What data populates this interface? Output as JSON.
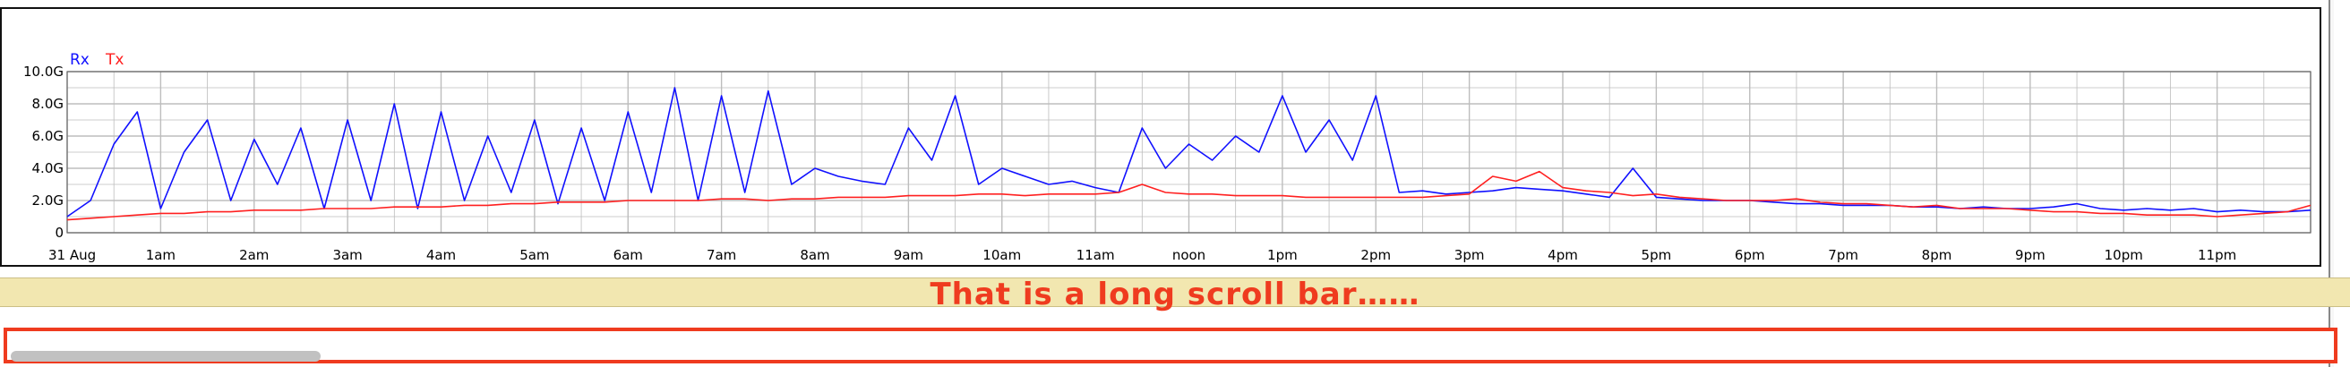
{
  "banner": {
    "text": "That is a long scroll bar……"
  },
  "scrollbar": {
    "position": 0.0,
    "thumb_fraction": 0.13
  },
  "colors": {
    "rx": "#1010ff",
    "tx": "#ff2020",
    "banner_text": "#ef3b1f",
    "banner_bg": "#f2e7b0",
    "grid": "#bdbdbd"
  },
  "chart_data": {
    "type": "line",
    "title": "",
    "xlabel": "",
    "ylabel": "",
    "x_tick_labels": [
      "31 Aug",
      "1am",
      "2am",
      "3am",
      "4am",
      "5am",
      "6am",
      "7am",
      "8am",
      "9am",
      "10am",
      "11am",
      "noon",
      "1pm",
      "2pm",
      "3pm",
      "4pm",
      "5pm",
      "6pm",
      "7pm",
      "8pm",
      "9pm",
      "10pm",
      "11pm"
    ],
    "y_tick_labels": [
      "0",
      "2.0G",
      "4.0G",
      "6.0G",
      "8.0G",
      "10.0G"
    ],
    "ylim": [
      0,
      10
    ],
    "xlim": [
      0,
      24
    ],
    "grid": true,
    "legend": "top-left",
    "series": [
      {
        "name": "Rx",
        "color": "#1010ff",
        "x": [
          0,
          0.25,
          0.5,
          0.75,
          1,
          1.25,
          1.5,
          1.75,
          2,
          2.25,
          2.5,
          2.75,
          3,
          3.25,
          3.5,
          3.75,
          4,
          4.25,
          4.5,
          4.75,
          5,
          5.25,
          5.5,
          5.75,
          6,
          6.25,
          6.5,
          6.75,
          7,
          7.25,
          7.5,
          7.75,
          8,
          8.25,
          8.5,
          8.75,
          9,
          9.25,
          9.5,
          9.75,
          10,
          10.25,
          10.5,
          10.75,
          11,
          11.25,
          11.5,
          11.75,
          12,
          12.25,
          12.5,
          12.75,
          13,
          13.25,
          13.5,
          13.75,
          14,
          14.25,
          14.5,
          14.75,
          15,
          15.25,
          15.5,
          15.75,
          16,
          16.25,
          16.5,
          16.75,
          17,
          17.25,
          17.5,
          17.75,
          18,
          18.25,
          18.5,
          18.75,
          19,
          19.25,
          19.5,
          19.75,
          20,
          20.25,
          20.5,
          20.75,
          21,
          21.25,
          21.5,
          21.75,
          22,
          22.25,
          22.5,
          22.75,
          23,
          23.25,
          23.5,
          23.75,
          24
        ],
        "y": [
          1.0,
          2.0,
          5.5,
          7.5,
          1.5,
          5.0,
          7.0,
          2.0,
          5.8,
          3.0,
          6.5,
          1.5,
          7.0,
          2.0,
          8.0,
          1.5,
          7.5,
          2.0,
          6.0,
          2.5,
          7.0,
          1.8,
          6.5,
          2.0,
          7.5,
          2.5,
          9.0,
          2.0,
          8.5,
          2.5,
          8.8,
          3.0,
          4.0,
          3.5,
          3.2,
          3.0,
          6.5,
          4.5,
          8.5,
          3.0,
          4.0,
          3.5,
          3.0,
          3.2,
          2.8,
          2.5,
          6.5,
          4.0,
          5.5,
          4.5,
          6.0,
          5.0,
          8.5,
          5.0,
          7.0,
          4.5,
          8.5,
          2.5,
          2.6,
          2.4,
          2.5,
          2.6,
          2.8,
          2.7,
          2.6,
          2.4,
          2.2,
          4.0,
          2.2,
          2.1,
          2.0,
          2.0,
          2.0,
          1.9,
          1.8,
          1.8,
          1.7,
          1.7,
          1.7,
          1.6,
          1.6,
          1.5,
          1.6,
          1.5,
          1.5,
          1.6,
          1.8,
          1.5,
          1.4,
          1.5,
          1.4,
          1.5,
          1.3,
          1.4,
          1.3,
          1.3,
          1.4
        ]
      },
      {
        "name": "Tx",
        "color": "#ff2020",
        "x": [
          0,
          0.25,
          0.5,
          0.75,
          1,
          1.25,
          1.5,
          1.75,
          2,
          2.25,
          2.5,
          2.75,
          3,
          3.25,
          3.5,
          3.75,
          4,
          4.25,
          4.5,
          4.75,
          5,
          5.25,
          5.5,
          5.75,
          6,
          6.25,
          6.5,
          6.75,
          7,
          7.25,
          7.5,
          7.75,
          8,
          8.25,
          8.5,
          8.75,
          9,
          9.25,
          9.5,
          9.75,
          10,
          10.25,
          10.5,
          10.75,
          11,
          11.25,
          11.5,
          11.75,
          12,
          12.25,
          12.5,
          12.75,
          13,
          13.25,
          13.5,
          13.75,
          14,
          14.25,
          14.5,
          14.75,
          15,
          15.25,
          15.5,
          15.75,
          16,
          16.25,
          16.5,
          16.75,
          17,
          17.25,
          17.5,
          17.75,
          18,
          18.25,
          18.5,
          18.75,
          19,
          19.25,
          19.5,
          19.75,
          20,
          20.25,
          20.5,
          20.75,
          21,
          21.25,
          21.5,
          21.75,
          22,
          22.25,
          22.5,
          22.75,
          23,
          23.25,
          23.5,
          23.75,
          24
        ],
        "y": [
          0.8,
          0.9,
          1.0,
          1.1,
          1.2,
          1.2,
          1.3,
          1.3,
          1.4,
          1.4,
          1.4,
          1.5,
          1.5,
          1.5,
          1.6,
          1.6,
          1.6,
          1.7,
          1.7,
          1.8,
          1.8,
          1.9,
          1.9,
          1.9,
          2.0,
          2.0,
          2.0,
          2.0,
          2.1,
          2.1,
          2.0,
          2.1,
          2.1,
          2.2,
          2.2,
          2.2,
          2.3,
          2.3,
          2.3,
          2.4,
          2.4,
          2.3,
          2.4,
          2.4,
          2.4,
          2.5,
          3.0,
          2.5,
          2.4,
          2.4,
          2.3,
          2.3,
          2.3,
          2.2,
          2.2,
          2.2,
          2.2,
          2.2,
          2.2,
          2.3,
          2.4,
          3.5,
          3.2,
          3.8,
          2.8,
          2.6,
          2.5,
          2.3,
          2.4,
          2.2,
          2.1,
          2.0,
          2.0,
          2.0,
          2.1,
          1.9,
          1.8,
          1.8,
          1.7,
          1.6,
          1.7,
          1.5,
          1.5,
          1.5,
          1.4,
          1.3,
          1.3,
          1.2,
          1.2,
          1.1,
          1.1,
          1.1,
          1.0,
          1.1,
          1.2,
          1.3,
          1.7
        ]
      }
    ]
  }
}
